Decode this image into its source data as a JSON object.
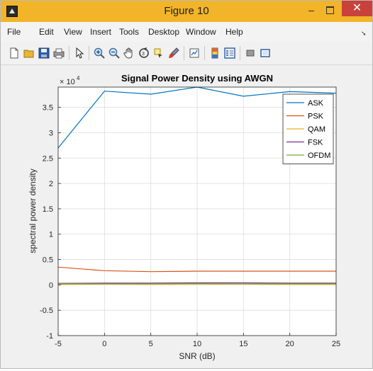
{
  "window": {
    "title": "Figure 10",
    "minimize_symbol": "–",
    "close_symbol": "✕"
  },
  "menu": {
    "items": [
      "File",
      "Edit",
      "View",
      "Insert",
      "Tools",
      "Desktop",
      "Window",
      "Help"
    ],
    "overflow_symbol": "➘"
  },
  "toolbar": {
    "icons": [
      "new-figure-icon",
      "open-file-icon",
      "save-icon",
      "print-icon",
      "edit-plot-arrow-icon",
      "zoom-in-icon",
      "zoom-out-icon",
      "pan-hand-icon",
      "rotate-3d-icon",
      "data-cursor-icon",
      "brush-icon",
      "link-plot-icon",
      "colorbar-icon",
      "legend-icon",
      "hide-plot-tools-icon",
      "show-plot-tools-icon"
    ]
  },
  "chart_data": {
    "type": "line",
    "title": "Signal Power Density using AWGN",
    "xlabel": "SNR (dB)",
    "ylabel": "spectral power density",
    "exponent_label": "× 10",
    "exponent_power": "4",
    "xlim": [
      -5,
      25
    ],
    "ylim": [
      -1,
      3.9
    ],
    "x_ticks": [
      "-5",
      "0",
      "5",
      "10",
      "15",
      "20",
      "25"
    ],
    "y_ticks": [
      "-1",
      "-0.5",
      "0",
      "0.5",
      "1",
      "1.5",
      "2",
      "2.5",
      "3",
      "3.5"
    ],
    "y_tick_values": [
      -1,
      -0.5,
      0,
      0.5,
      1,
      1.5,
      2,
      2.5,
      3,
      3.5
    ],
    "x": [
      -5,
      0,
      5,
      10,
      15,
      20,
      25
    ],
    "grid": true,
    "legend_position": "top-right",
    "series": [
      {
        "name": "ASK",
        "color": "#0072bd",
        "values": [
          2.7,
          3.82,
          3.76,
          3.9,
          3.72,
          3.81,
          3.78
        ]
      },
      {
        "name": "PSK",
        "color": "#d95319",
        "values": [
          0.35,
          0.28,
          0.26,
          0.27,
          0.27,
          0.27,
          0.27
        ]
      },
      {
        "name": "QAM",
        "color": "#edb120",
        "values": [
          0.01,
          0.015,
          0.01,
          0.015,
          0.015,
          0.01,
          0.01
        ]
      },
      {
        "name": "FSK",
        "color": "#7e2f8e",
        "values": [
          0.03,
          0.035,
          0.035,
          0.04,
          0.04,
          0.035,
          0.035
        ]
      },
      {
        "name": "OFDM",
        "color": "#77ac30",
        "values": [
          0.02,
          0.02,
          0.02,
          0.025,
          0.02,
          0.02,
          0.02
        ]
      }
    ]
  }
}
